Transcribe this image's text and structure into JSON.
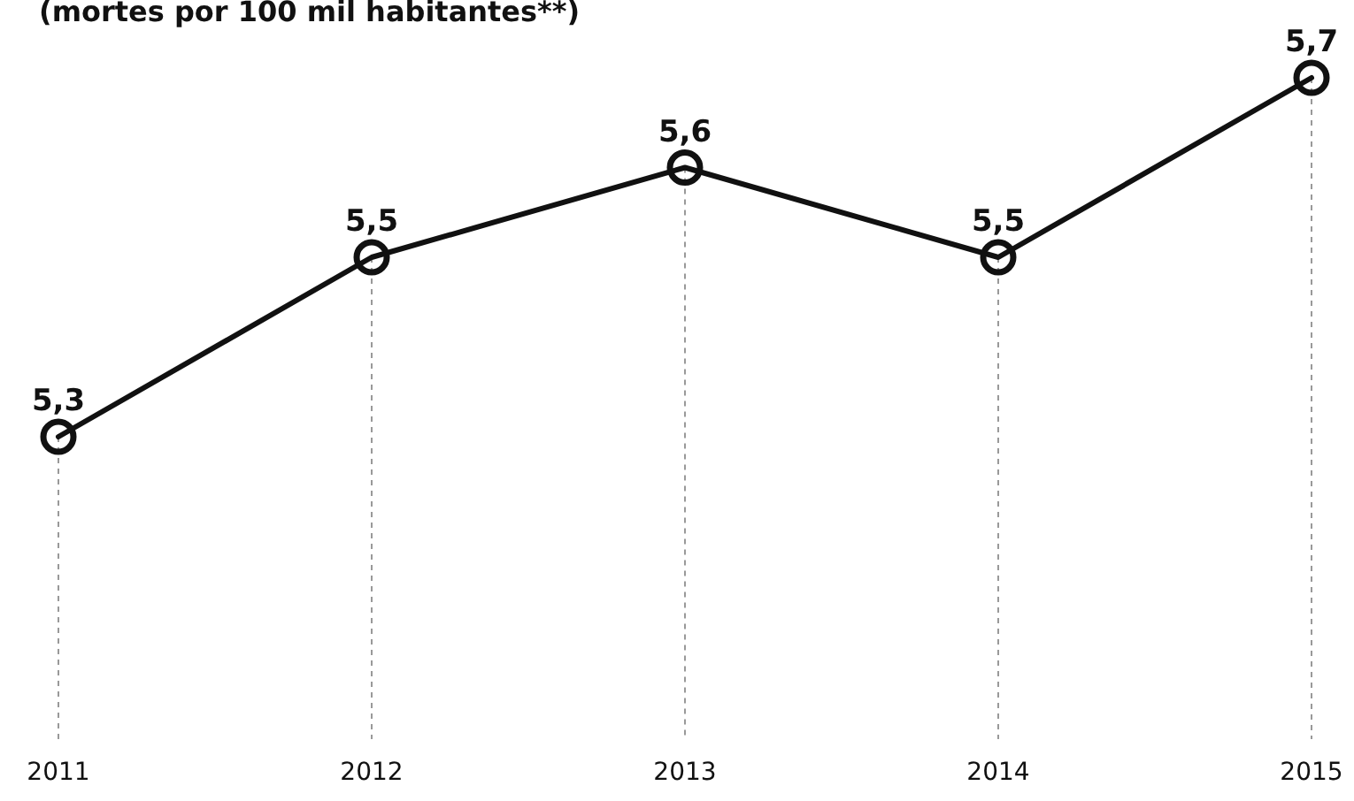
{
  "chart_data": {
    "type": "line",
    "subtitle": "(mortes por 100 mil habitantes**)",
    "categories": [
      "2011",
      "2012",
      "2013",
      "2014",
      "2015"
    ],
    "series": [
      {
        "color": "#111111",
        "values": [
          5.3,
          5.5,
          5.6,
          5.5,
          5.7
        ],
        "value_labels": [
          "5,3",
          "5,5",
          "5,6",
          "5,5",
          "5,7"
        ]
      }
    ],
    "tick_labels": "x",
    "grid": "x",
    "marker": "circle",
    "line_style": "solid"
  }
}
